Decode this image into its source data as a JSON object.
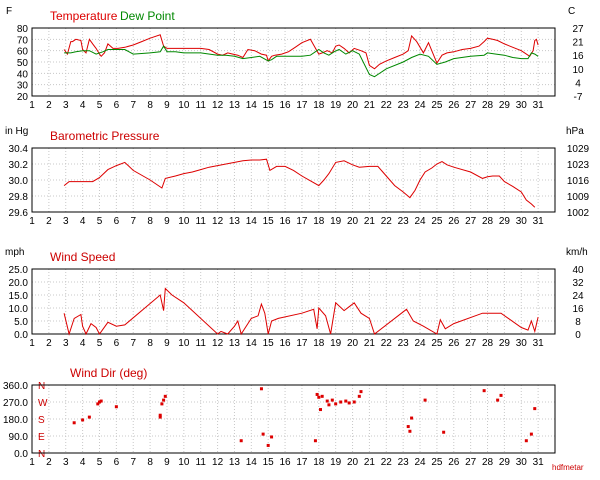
{
  "chart_data": [
    {
      "type": "line",
      "title": "",
      "legend": [
        "Temperature",
        "Dew Point"
      ],
      "left_unit": "F",
      "right_unit": "C",
      "x_ticks": [
        "1",
        "2",
        "3",
        "4",
        "5",
        "6",
        "7",
        "8",
        "9",
        "10",
        "11",
        "12",
        "13",
        "14",
        "15",
        "16",
        "17",
        "18",
        "19",
        "20",
        "21",
        "22",
        "23",
        "24",
        "25",
        "26",
        "27",
        "28",
        "29",
        "30",
        "31"
      ],
      "xlim": [
        1,
        32
      ],
      "ylim": [
        20,
        80
      ],
      "y_ticks": [
        "20",
        "30",
        "40",
        "50",
        "60",
        "70",
        "80"
      ],
      "right_ticks": [
        "-7",
        "4",
        "10",
        "16",
        "21",
        "27"
      ],
      "grid": true,
      "series": [
        {
          "name": "Temperature",
          "color": "#dd0000",
          "x": [
            2.9,
            3.1,
            3.3,
            3.4,
            3.6,
            3.9,
            4.0,
            4.2,
            4.4,
            4.6,
            4.8,
            5.0,
            5.1,
            5.3,
            5.5,
            5.8,
            6.1,
            6.5,
            7.0,
            7.5,
            8.0,
            8.6,
            8.8,
            9.0,
            9.5,
            10.0,
            10.5,
            11.0,
            11.5,
            12.0,
            12.3,
            12.6,
            12.9,
            13.2,
            13.5,
            13.8,
            14.2,
            14.6,
            14.9,
            15.0,
            15.2,
            15.4,
            15.8,
            16.2,
            16.6,
            17.0,
            17.5,
            18.0,
            18.2,
            18.5,
            18.8,
            19.0,
            19.2,
            19.5,
            19.8,
            20.1,
            20.5,
            20.8,
            21.0,
            21.3,
            21.6,
            22.0,
            22.5,
            23.0,
            23.3,
            23.5,
            23.8,
            24.2,
            24.5,
            25.0,
            25.3,
            25.6,
            26.0,
            26.5,
            27.0,
            27.5,
            27.8,
            28.0,
            28.3,
            28.6,
            29.0,
            29.5,
            30.0,
            30.5,
            30.7,
            30.8,
            30.9,
            31.0
          ],
          "y": [
            61,
            57,
            68,
            68,
            70,
            69,
            61,
            58,
            70,
            66,
            62,
            57,
            55,
            58,
            66,
            62,
            62,
            63,
            65,
            68,
            71,
            74,
            64,
            62,
            62,
            62,
            62,
            62,
            61,
            57,
            56,
            58,
            57,
            56,
            54,
            61,
            60,
            57,
            56,
            51,
            55,
            56,
            57,
            59,
            63,
            67,
            70,
            57,
            58,
            60,
            58,
            64,
            65,
            62,
            58,
            62,
            60,
            58,
            47,
            44,
            48,
            51,
            54,
            57,
            60,
            73,
            68,
            58,
            67,
            49,
            56,
            58,
            59,
            61,
            62,
            64,
            68,
            71,
            70,
            69,
            66,
            63,
            60,
            55,
            60,
            69,
            70,
            65
          ]
        },
        {
          "name": "Dew Point",
          "color": "#008800",
          "x": [
            2.9,
            3.3,
            3.6,
            4.0,
            4.4,
            4.8,
            5.2,
            5.5,
            6.0,
            6.5,
            7.0,
            8.0,
            8.6,
            8.8,
            9.0,
            9.5,
            10.0,
            11.0,
            12.0,
            12.5,
            13.0,
            13.5,
            14.0,
            14.5,
            15.0,
            15.2,
            15.5,
            16.0,
            16.5,
            17.0,
            17.5,
            18.0,
            18.3,
            18.6,
            18.9,
            19.2,
            19.6,
            20.0,
            20.4,
            21.0,
            21.3,
            22.0,
            23.0,
            23.5,
            24.0,
            24.5,
            25.0,
            25.5,
            26.0,
            27.0,
            27.8,
            28.0,
            28.5,
            29.0,
            29.5,
            30.0,
            30.4,
            30.6,
            30.8,
            31.0
          ],
          "y": [
            58,
            58,
            59,
            60,
            60,
            57,
            59,
            61,
            61,
            61,
            57,
            58,
            59,
            64,
            59,
            59,
            58,
            58,
            56,
            56,
            55,
            53,
            54,
            55,
            51,
            52,
            55,
            55,
            55,
            55,
            56,
            61,
            58,
            56,
            59,
            61,
            57,
            60,
            57,
            39,
            37,
            44,
            50,
            54,
            57,
            55,
            48,
            50,
            53,
            55,
            56,
            58,
            57,
            56,
            54,
            53,
            53,
            58,
            57,
            55
          ]
        }
      ]
    },
    {
      "type": "line",
      "title": "Barometric Pressure",
      "left_unit": "in Hg",
      "right_unit": "hPa",
      "x_ticks": [
        "1",
        "2",
        "3",
        "4",
        "5",
        "6",
        "7",
        "8",
        "9",
        "10",
        "11",
        "12",
        "13",
        "14",
        "15",
        "16",
        "17",
        "18",
        "19",
        "20",
        "21",
        "22",
        "23",
        "24",
        "25",
        "26",
        "27",
        "28",
        "29",
        "30",
        "31"
      ],
      "xlim": [
        1,
        32
      ],
      "ylim": [
        29.6,
        30.4
      ],
      "y_ticks": [
        "29.6",
        "29.8",
        "30.0",
        "30.2",
        "30.4"
      ],
      "right_ticks": [
        "1002",
        "1009",
        "1016",
        "1023",
        "1029"
      ],
      "grid": true,
      "series": [
        {
          "name": "Barometric Pressure",
          "color": "#dd0000",
          "x": [
            2.9,
            3.2,
            4.0,
            4.6,
            5.0,
            5.5,
            6.0,
            6.5,
            7.0,
            8.0,
            8.7,
            8.9,
            9.5,
            10.0,
            10.5,
            11.0,
            11.5,
            12.0,
            12.5,
            13.0,
            13.5,
            14.0,
            14.5,
            14.9,
            15.1,
            15.5,
            16.0,
            16.5,
            17.0,
            17.5,
            18.0,
            18.3,
            18.6,
            19.0,
            19.5,
            20.0,
            20.4,
            21.0,
            21.5,
            22.0,
            22.5,
            23.0,
            23.4,
            23.7,
            24.0,
            24.3,
            24.7,
            25.0,
            25.3,
            25.6,
            26.0,
            27.0,
            27.7,
            28.0,
            28.3,
            28.7,
            29.0,
            29.5,
            30.0,
            30.3,
            30.6,
            30.8
          ],
          "y": [
            29.93,
            29.98,
            29.98,
            29.98,
            30.03,
            30.13,
            30.18,
            30.22,
            30.12,
            30.0,
            29.9,
            30.02,
            30.05,
            30.08,
            30.1,
            30.13,
            30.16,
            30.18,
            30.2,
            30.22,
            30.24,
            30.25,
            30.25,
            30.26,
            30.12,
            30.17,
            30.17,
            30.12,
            30.05,
            29.99,
            29.93,
            30.0,
            30.08,
            30.22,
            30.24,
            30.19,
            30.16,
            30.17,
            30.17,
            30.05,
            29.93,
            29.85,
            29.78,
            29.87,
            30.0,
            30.1,
            30.15,
            30.2,
            30.23,
            30.19,
            30.16,
            30.1,
            30.02,
            30.04,
            30.05,
            30.05,
            29.98,
            29.92,
            29.85,
            29.75,
            29.7,
            29.66
          ]
        }
      ]
    },
    {
      "type": "line",
      "title": "Wind Speed",
      "left_unit": "mph",
      "right_unit": "km/h",
      "x_ticks": [
        "1",
        "2",
        "3",
        "4",
        "5",
        "6",
        "7",
        "8",
        "9",
        "10",
        "11",
        "12",
        "13",
        "14",
        "15",
        "16",
        "17",
        "18",
        "19",
        "20",
        "21",
        "22",
        "23",
        "24",
        "25",
        "26",
        "27",
        "28",
        "29",
        "30",
        "31"
      ],
      "xlim": [
        1,
        32
      ],
      "ylim": [
        0,
        25
      ],
      "y_ticks": [
        "0.0",
        "5.0",
        "10.0",
        "15.0",
        "20.0",
        "25.0"
      ],
      "right_ticks": [
        "0",
        "8",
        "16",
        "24",
        "32",
        "40"
      ],
      "grid": true,
      "series": [
        {
          "name": "Wind Speed",
          "color": "#dd0000",
          "x": [
            2.9,
            3.2,
            3.5,
            3.9,
            4.0,
            4.2,
            4.5,
            4.8,
            5.0,
            5.5,
            6.0,
            6.5,
            8.6,
            8.8,
            8.9,
            9.3,
            10.0,
            12.0,
            12.2,
            12.6,
            13.0,
            13.2,
            13.4,
            14.0,
            14.4,
            14.6,
            14.8,
            15.0,
            15.2,
            15.6,
            17.0,
            17.7,
            17.9,
            18.0,
            18.4,
            18.7,
            19.0,
            19.5,
            19.8,
            20.1,
            20.5,
            21.0,
            21.3,
            23.2,
            23.6,
            24.2,
            25.0,
            25.2,
            25.5,
            26.0,
            27.7,
            28.8,
            30.0,
            30.4,
            30.6,
            30.8,
            31.0
          ],
          "y": [
            8.0,
            0.0,
            6.0,
            7.5,
            3.0,
            0.0,
            4.0,
            2.5,
            0.0,
            4.5,
            3.0,
            3.5,
            15.0,
            9.0,
            17.5,
            15.0,
            12.0,
            0.0,
            1.0,
            0.0,
            3.0,
            5.0,
            0.0,
            6.0,
            7.0,
            11.5,
            8.0,
            0.0,
            5.0,
            6.0,
            8.0,
            9.5,
            2.0,
            10.0,
            7.0,
            0.0,
            12.0,
            9.0,
            10.5,
            12.0,
            8.0,
            6.0,
            0.0,
            9.5,
            5.0,
            3.0,
            0.0,
            5.5,
            2.0,
            4.0,
            8.0,
            8.0,
            2.5,
            1.5,
            5.0,
            1.0,
            6.5
          ]
        }
      ]
    },
    {
      "type": "scatter",
      "title": "Wind Dir (deg)",
      "x_ticks": [
        "1",
        "2",
        "3",
        "4",
        "5",
        "6",
        "7",
        "8",
        "9",
        "10",
        "11",
        "12",
        "13",
        "14",
        "15",
        "16",
        "17",
        "18",
        "19",
        "20",
        "21",
        "22",
        "23",
        "24",
        "25",
        "26",
        "27",
        "28",
        "29",
        "30",
        "31"
      ],
      "xlim": [
        1,
        32
      ],
      "ylim": [
        0,
        360
      ],
      "y_ticks": [
        "0.0",
        "90.0",
        "180.0",
        "270.0",
        "360.0"
      ],
      "compass_ticks": [
        "N",
        "E",
        "S",
        "W",
        "N"
      ],
      "footer": "hdfmetar",
      "grid": true,
      "series": [
        {
          "name": "Wind Dir (deg)",
          "color": "#dd0000",
          "x": [
            3.5,
            4.0,
            4.4,
            4.9,
            5.0,
            5.1,
            6.0,
            8.6,
            8.6,
            8.7,
            8.8,
            8.9,
            13.4,
            14.6,
            14.7,
            15.0,
            15.2,
            17.8,
            17.9,
            18.0,
            18.1,
            18.2,
            18.5,
            18.6,
            18.8,
            19.0,
            19.3,
            19.6,
            19.8,
            20.1,
            20.4,
            20.5,
            23.3,
            23.4,
            23.5,
            24.3,
            25.4,
            27.8,
            28.6,
            28.8,
            30.3,
            30.6,
            30.8
          ],
          "y": [
            160,
            175,
            190,
            260,
            270,
            275,
            245,
            190,
            200,
            260,
            280,
            300,
            65,
            340,
            100,
            40,
            85,
            65,
            310,
            295,
            230,
            300,
            275,
            255,
            280,
            260,
            270,
            275,
            265,
            270,
            300,
            325,
            140,
            115,
            185,
            280,
            110,
            330,
            280,
            305,
            65,
            100,
            235
          ]
        }
      ]
    }
  ]
}
